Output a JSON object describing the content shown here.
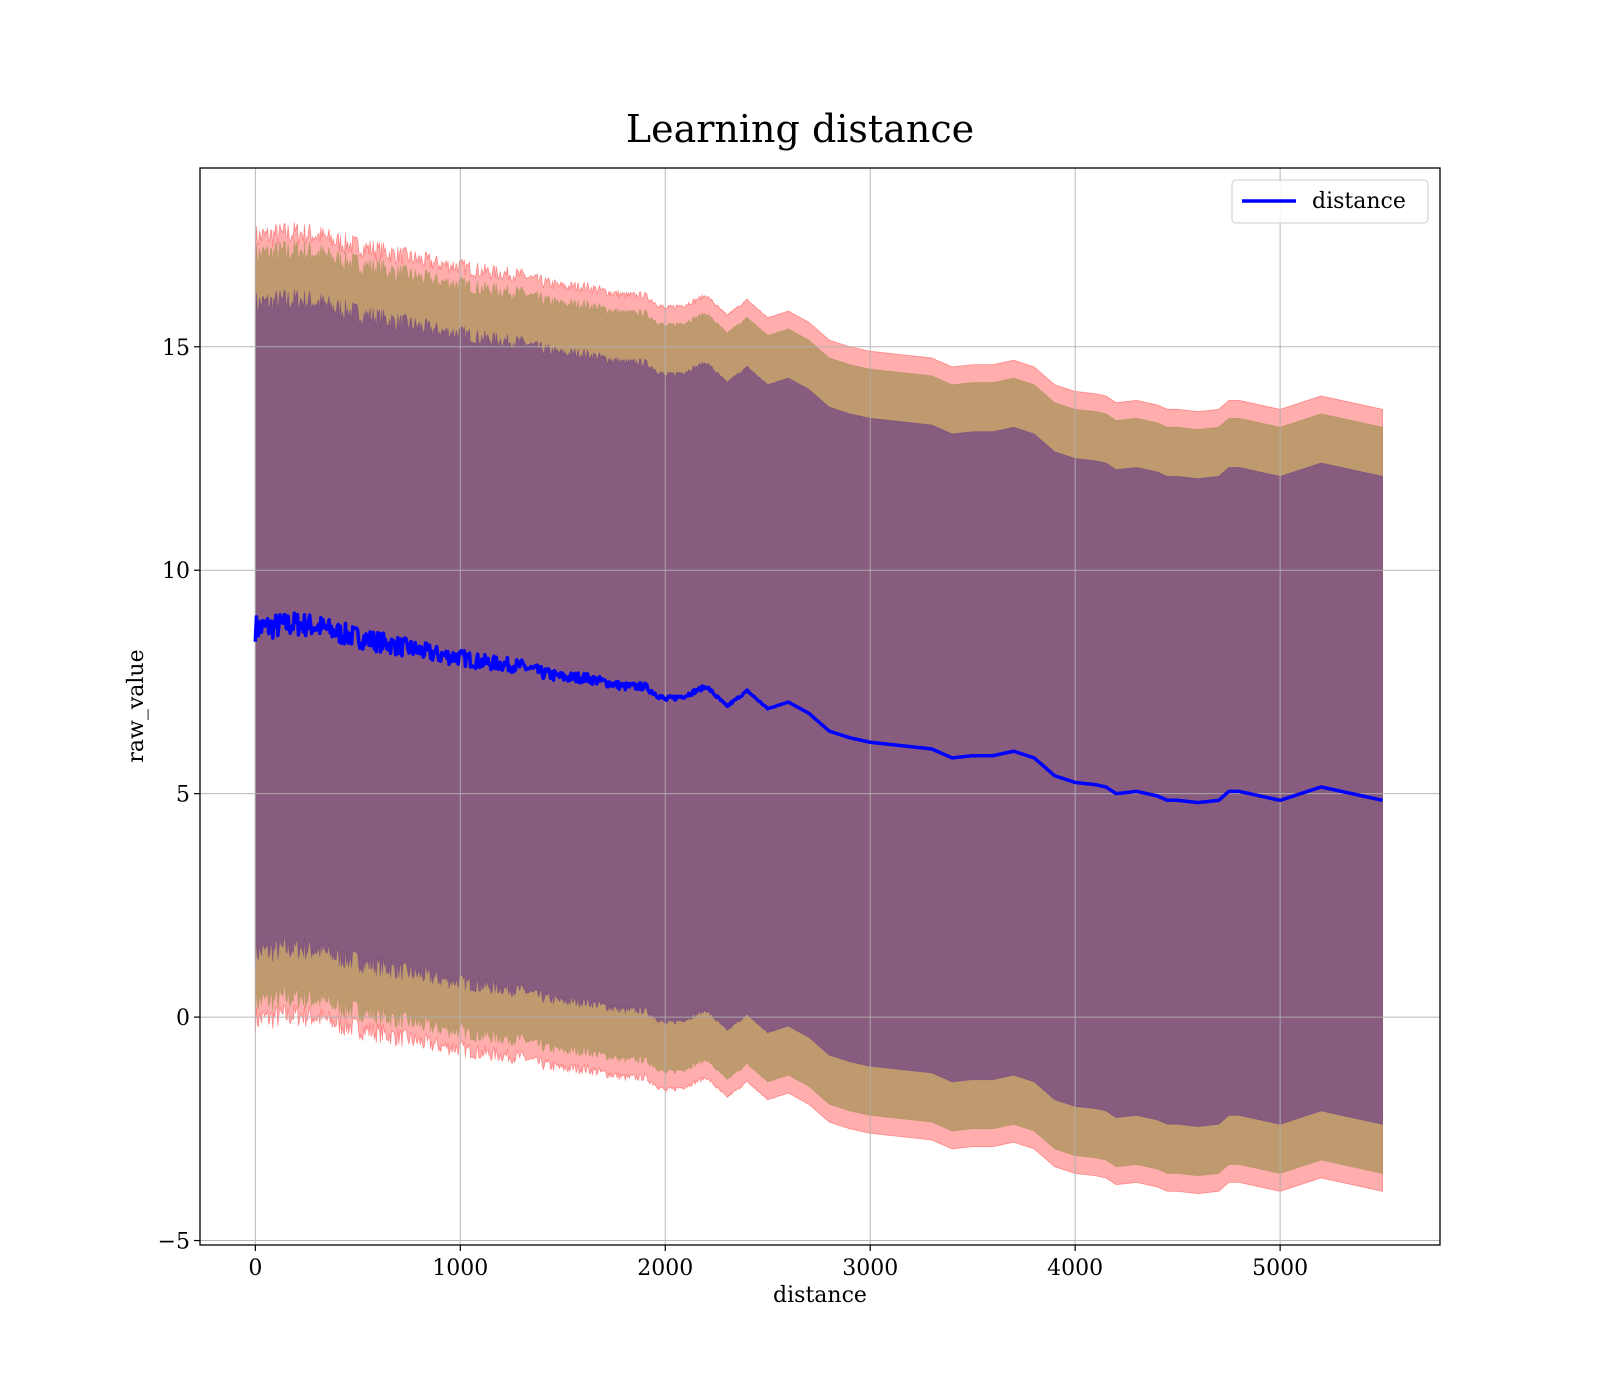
{
  "chart_data": {
    "type": "line",
    "title": "Learning distance",
    "xlabel": "distance",
    "ylabel": "raw_value",
    "xlim": [
      -270,
      5780
    ],
    "ylim": [
      -5.1,
      19.0
    ],
    "xticks": [
      0,
      1000,
      2000,
      3000,
      4000,
      5000
    ],
    "yticks": [
      -5,
      0,
      5,
      10,
      15
    ],
    "ytick_labels": [
      "−5",
      "0",
      "5",
      "10",
      "15"
    ],
    "grid": true,
    "legend_position": "top-right",
    "colors": {
      "line": "#0000ff",
      "outer_band": "#ff0000",
      "mid_band": "#8b8b3c",
      "inner_band": "#5a2a8a"
    },
    "series": [
      {
        "name": "distance",
        "x": [
          0,
          100,
          200,
          300,
          400,
          500,
          600,
          700,
          800,
          900,
          1000,
          1100,
          1200,
          1300,
          1400,
          1500,
          1600,
          1700,
          1800,
          1900,
          2000,
          2100,
          2200,
          2300,
          2400,
          2500,
          2600,
          2700,
          2800,
          2900,
          3000,
          3100,
          3200,
          3300,
          3400,
          3500,
          3600,
          3700,
          3800,
          3900,
          4000,
          4100,
          4150,
          4200,
          4300,
          4400,
          4450,
          4500,
          4600,
          4700,
          4750,
          4800,
          5000,
          5200,
          5500
        ],
        "y": [
          8.7,
          8.75,
          8.8,
          8.75,
          8.6,
          8.5,
          8.4,
          8.3,
          8.2,
          8.1,
          8.05,
          7.95,
          7.9,
          7.85,
          7.7,
          7.6,
          7.6,
          7.5,
          7.4,
          7.4,
          7.1,
          7.2,
          7.4,
          6.95,
          7.3,
          6.9,
          7.05,
          6.8,
          6.4,
          6.25,
          6.15,
          6.1,
          6.05,
          6.0,
          5.8,
          5.85,
          5.85,
          5.95,
          5.8,
          5.4,
          5.25,
          5.2,
          5.15,
          5.0,
          5.05,
          4.95,
          4.85,
          4.85,
          4.8,
          4.85,
          5.05,
          5.05,
          4.85,
          5.15,
          4.85
        ]
      }
    ],
    "bands": [
      {
        "label": "outer",
        "upper_offset": 8.75,
        "lower_offset": 8.75
      },
      {
        "label": "mid",
        "upper_offset": 8.35,
        "lower_offset": 8.35
      },
      {
        "label": "inner",
        "upper_offset": 7.25,
        "lower_offset": 7.25
      }
    ]
  }
}
